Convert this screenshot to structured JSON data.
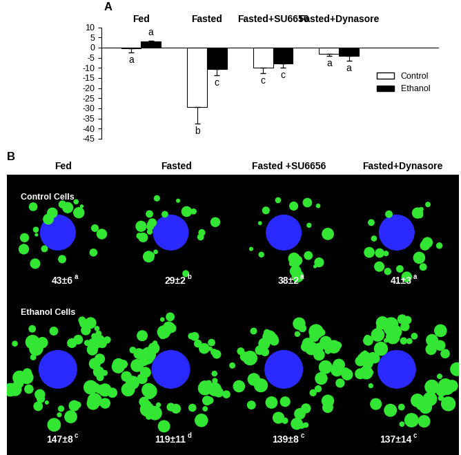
{
  "panel_labels": [
    "A",
    "B"
  ],
  "chart_data": {
    "type": "bar",
    "categories": [
      "Fed",
      "Fasted",
      "Fasted+SU6656",
      "Fasted+Dynasore"
    ],
    "series": [
      {
        "name": "Control",
        "color": "#ffffff",
        "values": [
          -0.5,
          -29.5,
          -10,
          -3
        ],
        "errors": [
          2,
          8,
          2.5,
          1
        ],
        "letters": [
          "a",
          "b",
          "c",
          "a"
        ]
      },
      {
        "name": "Ethanol",
        "color": "#000000",
        "values": [
          3,
          -10.5,
          -8,
          -4
        ],
        "errors": [
          0.5,
          3,
          2,
          2.5
        ],
        "letters": [
          "a",
          "c",
          "c",
          "a"
        ]
      }
    ],
    "ylim": [
      -45,
      10
    ],
    "yticks": [
      -45,
      -40,
      -35,
      -30,
      -25,
      -20,
      -15,
      -10,
      -5,
      0,
      5,
      10
    ],
    "grid": false,
    "legend": "center right",
    "tick_labels": "y"
  },
  "image_panel": {
    "columns": [
      "Fed",
      "Fasted",
      "Fasted +SU6656",
      "Fasted+Dynasore"
    ],
    "rows": [
      {
        "label": "Control Cells",
        "value_labels": [
          "43±6",
          "29±2",
          "38±2",
          "41±3"
        ],
        "letters": [
          "a",
          "b",
          "a",
          "a"
        ]
      },
      {
        "label": "Ethanol Cells",
        "value_labels": [
          "147±8",
          "119±11",
          "139±8",
          "137±14"
        ],
        "letters": [
          "c",
          "d",
          "c",
          "c"
        ]
      }
    ]
  }
}
